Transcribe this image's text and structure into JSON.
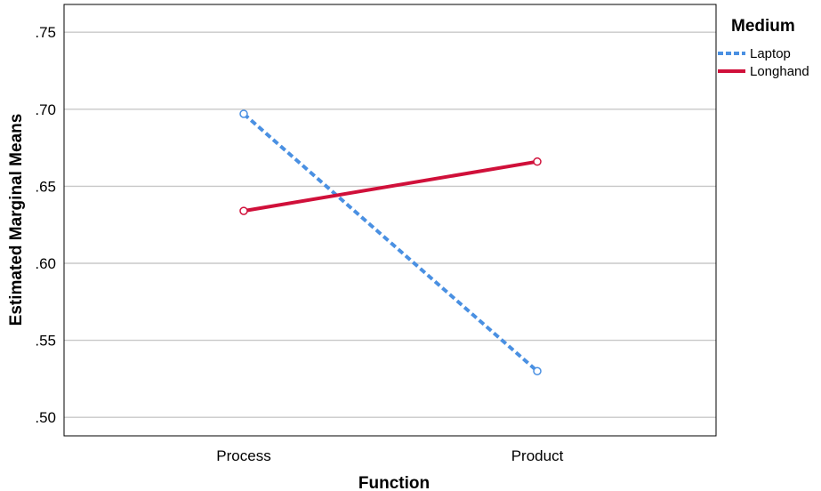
{
  "chart_data": {
    "type": "line",
    "xlabel": "Function",
    "ylabel": "Estimated Marginal Means",
    "categories": [
      "Process",
      "Product"
    ],
    "ylim": [
      0.488,
      0.768
    ],
    "yticks": [
      ".50",
      ".55",
      ".60",
      ".65",
      ".70",
      ".75"
    ],
    "ytick_values": [
      0.5,
      0.55,
      0.6,
      0.65,
      0.7,
      0.75
    ],
    "grid": true,
    "legend": {
      "title": "Medium",
      "placement": "right-top"
    },
    "series": [
      {
        "name": "Laptop",
        "values": [
          0.697,
          0.53
        ],
        "color": "#4a90e2",
        "style": "dotted",
        "marker": "open-circle"
      },
      {
        "name": "Longhand",
        "values": [
          0.634,
          0.666
        ],
        "color": "#d0103a",
        "style": "solid",
        "marker": "open-circle"
      }
    ]
  }
}
